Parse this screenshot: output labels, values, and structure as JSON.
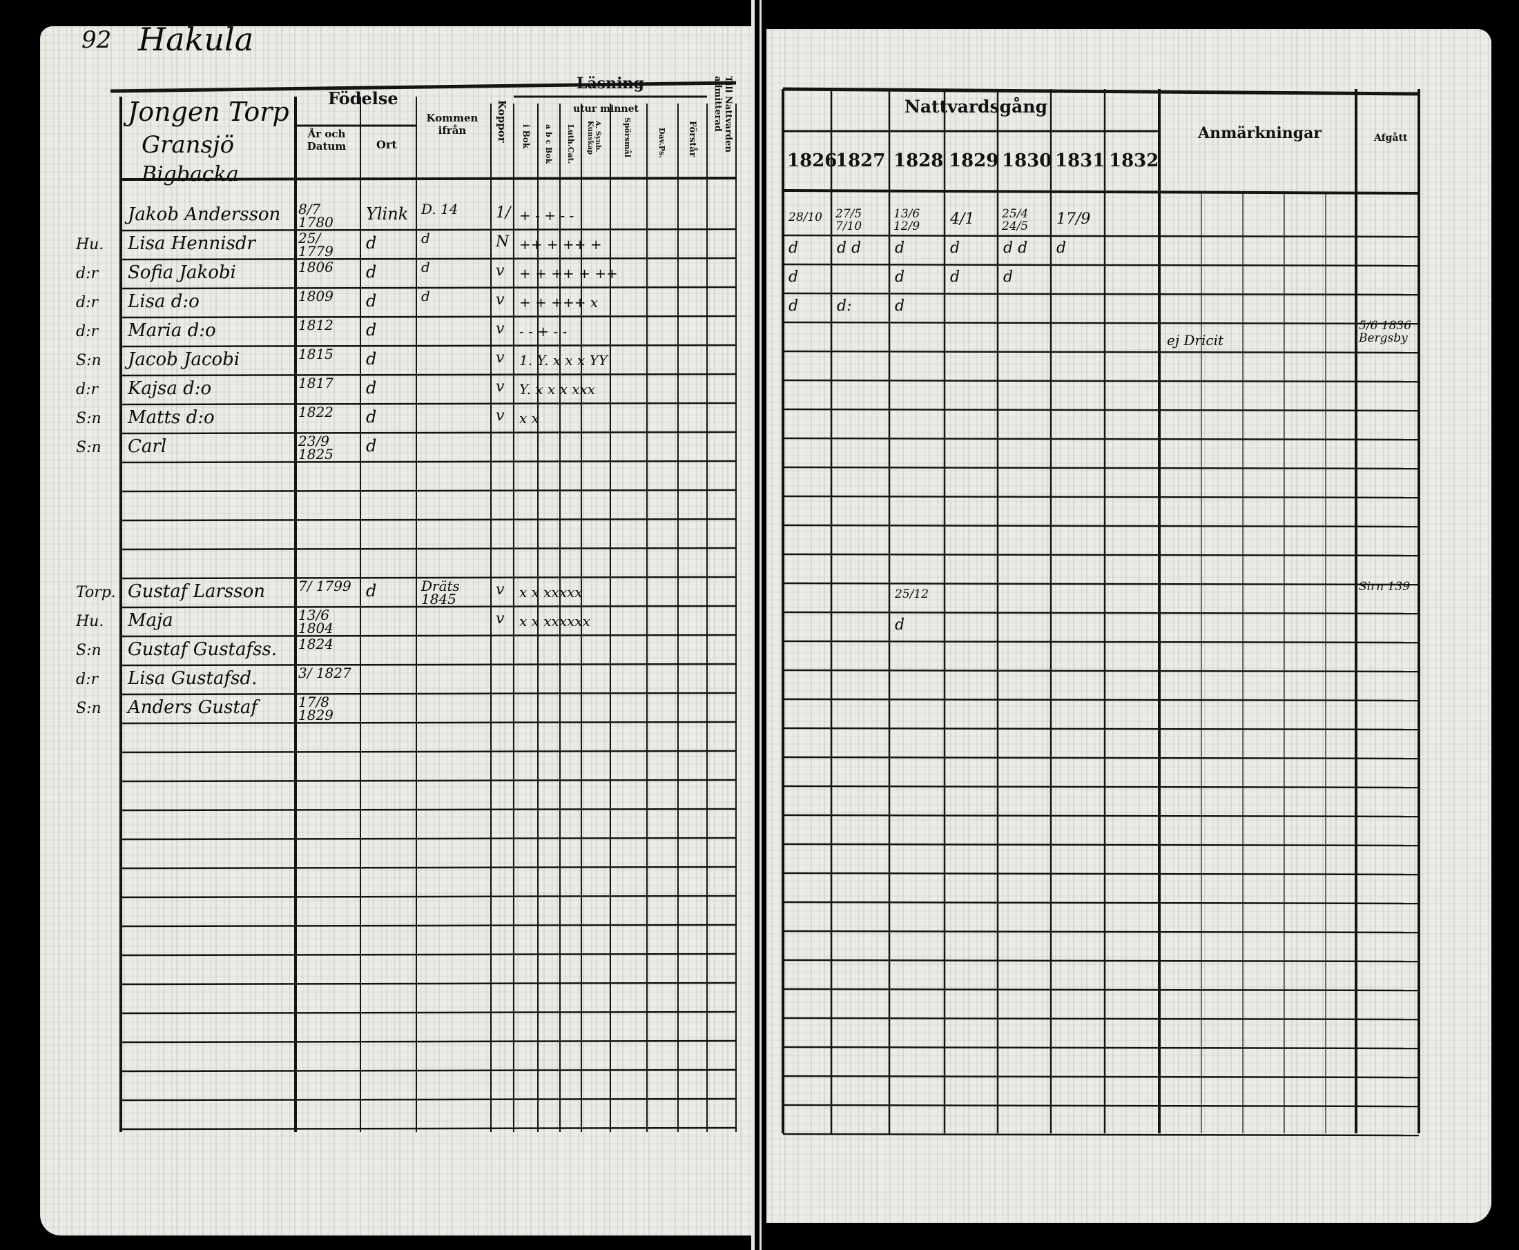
{
  "left": {
    "page_number": "92",
    "place": "Hakula",
    "household_heading": [
      "Jongen Torp",
      "Gransjö",
      "Bigbacka"
    ],
    "headers": {
      "fodelse": "Födelse",
      "ar_och_datum": "År och Datum",
      "ort": "Ort",
      "kommen": "Kommen ifrån",
      "koppor": "Koppor",
      "lasning": "Läsning",
      "utur_minnet": "utur minnet",
      "i_bok": "i Bok",
      "abc_bok": "a b c Bok",
      "luth_cat": "Luth.Cat.",
      "a_synb": "A. Synb. Kunskap",
      "sporsmal": "Spörsmål",
      "dav_ps": "Dav.Ps.",
      "forstar": "Förstår",
      "till_nattvarden": "Till Nattvarden admitterad"
    },
    "rows": [
      {
        "row": 0,
        "prefix": "",
        "name": "Jakob Andersson",
        "date": "8/7 1780",
        "ort": "Ylink",
        "kommen": "D. 14",
        "koppor": "1/",
        "lasning": "+ - + - -"
      },
      {
        "row": 1,
        "prefix": "Hu.",
        "name": "Lisa Hennisdr",
        "date": "25/ 1779",
        "ort": "d",
        "kommen": "d",
        "koppor": "N",
        "lasning": "++ + ++ +"
      },
      {
        "row": 2,
        "prefix": "d:r",
        "name": "Sofia Jakobi",
        "date": "1806",
        "ort": "d",
        "kommen": "d",
        "koppor": "v",
        "lasning": "+ + ++ + ++"
      },
      {
        "row": 3,
        "prefix": "d:r",
        "name": "Lisa d:o",
        "date": "1809",
        "ort": "d",
        "kommen": "d",
        "koppor": "v",
        "lasning": "+ + +++ x"
      },
      {
        "row": 4,
        "prefix": "d:r",
        "name": "Maria d:o",
        "date": "1812",
        "ort": "d",
        "kommen": "",
        "koppor": "v",
        "lasning": "- - + - -"
      },
      {
        "row": 5,
        "prefix": "S:n",
        "name": "Jacob Jacobi",
        "date": "1815",
        "ort": "d",
        "kommen": "",
        "koppor": "v",
        "lasning": "1. Y. x x x YY"
      },
      {
        "row": 6,
        "prefix": "d:r",
        "name": "Kajsa d:o",
        "date": "1817",
        "ort": "d",
        "kommen": "",
        "koppor": "v",
        "lasning": "Y. x x x xxx"
      },
      {
        "row": 7,
        "prefix": "S:n",
        "name": "Matts d:o",
        "date": "1822",
        "ort": "d",
        "kommen": "",
        "koppor": "v",
        "lasning": "x x"
      },
      {
        "row": 8,
        "prefix": "S:n",
        "name": "Carl",
        "date": "23/9 1825",
        "ort": "d",
        "kommen": "",
        "koppor": "",
        "lasning": ""
      },
      {
        "row": 13,
        "prefix": "Torp.",
        "name": "Gustaf Larsson",
        "date": "7/ 1799",
        "ort": "d",
        "kommen": "Dräts 1845",
        "koppor": "v",
        "lasning": "x x xxxxx"
      },
      {
        "row": 14,
        "prefix": "Hu.",
        "name": "Maja",
        "date": "13/6 1804",
        "ort": "",
        "kommen": "",
        "koppor": "v",
        "lasning": "x x xxxxxx"
      },
      {
        "row": 15,
        "prefix": "S:n",
        "name": "Gustaf Gustafss.",
        "date": "1824",
        "ort": "",
        "kommen": "",
        "koppor": "",
        "lasning": ""
      },
      {
        "row": 16,
        "prefix": "d:r",
        "name": "Lisa Gustafsd.",
        "date": "3/ 1827",
        "ort": "",
        "kommen": "",
        "koppor": "",
        "lasning": ""
      },
      {
        "row": 17,
        "prefix": "S:n",
        "name": "Anders Gustaf",
        "date": "17/8 1829",
        "ort": "",
        "kommen": "",
        "koppor": "",
        "lasning": ""
      }
    ]
  },
  "right": {
    "headers": {
      "nattvardsgang": "Nattvardsgång",
      "years": [
        "1826",
        "1827",
        "1828",
        "1829",
        "1830",
        "1831",
        "1832"
      ],
      "anmarkningar": "Anmärkningar",
      "afgatt": "Afgått"
    },
    "rows": [
      {
        "row": 0,
        "communion": [
          "28/10",
          "27/5 7/10",
          "13/6 12/9",
          "4/1",
          "25/4 24/5",
          "17/9",
          ""
        ],
        "remark": "",
        "left": ""
      },
      {
        "row": 1,
        "communion": [
          "d",
          "d d",
          "d",
          "d",
          "d d",
          "d",
          ""
        ],
        "remark": "",
        "left": ""
      },
      {
        "row": 2,
        "communion": [
          "d",
          "",
          "d",
          "d",
          "d",
          "",
          ""
        ],
        "remark": "",
        "left": ""
      },
      {
        "row": 3,
        "communion": [
          "d",
          "d:",
          "d",
          "",
          "",
          "",
          ""
        ],
        "remark": "",
        "left": ""
      },
      {
        "row": 4,
        "communion": [
          "",
          "",
          "",
          "",
          "",
          "",
          ""
        ],
        "remark": "ej Dricit",
        "left": "5/6 1836 Bergsby"
      },
      {
        "row": 13,
        "communion": [
          "",
          "",
          "25/12",
          "",
          "",
          "",
          ""
        ],
        "remark": "",
        "left": "Sirn 139"
      },
      {
        "row": 14,
        "communion": [
          "",
          "",
          "d",
          "",
          "",
          "",
          ""
        ],
        "remark": "",
        "left": ""
      }
    ]
  },
  "colors": {
    "paper": "#ecebe6",
    "ink": "#111111",
    "background": "#000000"
  }
}
